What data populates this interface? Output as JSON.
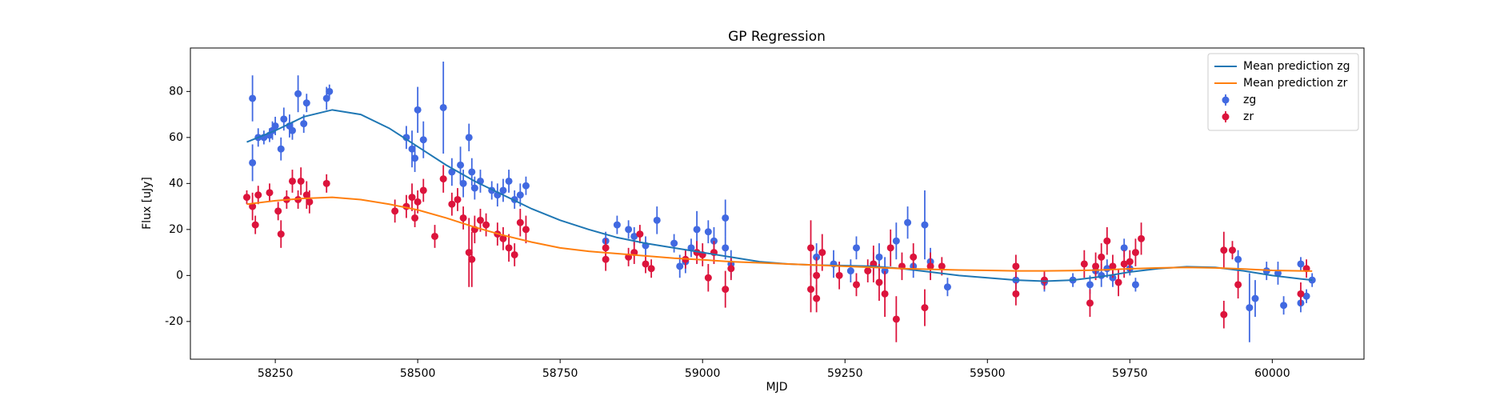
{
  "chart_data": {
    "type": "errorbar",
    "title": "GP Regression",
    "x_label": "MJD",
    "y_label": "Flux [uJy]",
    "xlim": [
      58101,
      60161
    ],
    "ylim": [
      -36.4,
      98.9
    ],
    "xticks": [
      58250,
      58500,
      58750,
      59000,
      59250,
      59500,
      59750,
      60000
    ],
    "yticks": [
      -20,
      0,
      20,
      40,
      60,
      80
    ],
    "legend": "upper right",
    "series": [
      {
        "name": "Mean prediction zg",
        "type": "line",
        "color": "#1f77b4",
        "x": [
          58200,
          58250,
          58300,
          58350,
          58400,
          58450,
          58500,
          58550,
          58600,
          58650,
          58700,
          58750,
          58800,
          58850,
          58900,
          58950,
          59000,
          59050,
          59100,
          59150,
          59200,
          59250,
          59300,
          59350,
          59400,
          59450,
          59500,
          59550,
          59600,
          59650,
          59700,
          59750,
          59800,
          59850,
          59900,
          59950,
          60000,
          60050,
          60070
        ],
        "values": [
          58,
          63,
          69,
          72,
          70,
          64,
          56,
          48,
          41,
          35,
          29,
          24,
          20,
          16.5,
          14,
          12,
          10,
          8,
          6,
          5,
          4.5,
          4.3,
          4,
          3,
          1.5,
          0,
          -1,
          -2,
          -2.5,
          -2,
          -0.5,
          1.5,
          3,
          3.8,
          3.5,
          2,
          0,
          -1.5,
          -2
        ]
      },
      {
        "name": "Mean prediction zr",
        "type": "line",
        "color": "#ff7f0e",
        "x": [
          58200,
          58250,
          58300,
          58350,
          58400,
          58450,
          58500,
          58550,
          58600,
          58650,
          58700,
          58750,
          58800,
          58850,
          58900,
          58950,
          59000,
          59050,
          59100,
          59150,
          59200,
          59250,
          59300,
          59350,
          59400,
          59450,
          59500,
          59550,
          59600,
          59650,
          59700,
          59750,
          59800,
          59850,
          59900,
          59950,
          60000,
          60050,
          60070
        ],
        "values": [
          31,
          32.5,
          33.5,
          34,
          33,
          31,
          28.5,
          25,
          21,
          17.5,
          14.5,
          12,
          10.5,
          9.5,
          8.5,
          7.5,
          6.8,
          6,
          5.5,
          5,
          4.5,
          4,
          3.5,
          3,
          2.7,
          2.4,
          2.2,
          2,
          2,
          2.1,
          2.4,
          2.9,
          3.3,
          3.5,
          3.3,
          2.8,
          2.2,
          2,
          1.9
        ]
      },
      {
        "name": "zg",
        "type": "errorbar",
        "color": "#4169e1",
        "x": [
          58210,
          58210,
          58220,
          58230,
          58240,
          58245,
          58250,
          58260,
          58265,
          58275,
          58280,
          58290,
          58300,
          58305,
          58340,
          58345,
          58480,
          58490,
          58495,
          58500,
          58510,
          58545,
          58560,
          58575,
          58580,
          58590,
          58595,
          58600,
          58610,
          58630,
          58640,
          58650,
          58660,
          58670,
          58680,
          58690,
          58830,
          58850,
          58870,
          58880,
          58900,
          58920,
          58950,
          58960,
          58970,
          58980,
          58990,
          59010,
          59020,
          59040,
          59040,
          59050,
          59200,
          59230,
          59260,
          59270,
          59300,
          59310,
          59320,
          59340,
          59360,
          59370,
          59390,
          59400,
          59430,
          59550,
          59600,
          59650,
          59680,
          59690,
          59700,
          59710,
          59720,
          59740,
          59750,
          59760,
          59940,
          59960,
          59970,
          59990,
          60010,
          60020,
          60050,
          60050,
          60060,
          60070
        ],
        "values": [
          77,
          49,
          60,
          60,
          61,
          63,
          65,
          55,
          68,
          65,
          63,
          79,
          66,
          75,
          77,
          80,
          60,
          55,
          51,
          72,
          59,
          73,
          45,
          48,
          40,
          60,
          45,
          38,
          41,
          37,
          35,
          37,
          41,
          33,
          35,
          39,
          15,
          22,
          20,
          17,
          13,
          24,
          14,
          4,
          6,
          12,
          20,
          19,
          15,
          12,
          25,
          5,
          8,
          5,
          2,
          12,
          5,
          8,
          2,
          15,
          23,
          4,
          22,
          6,
          -5,
          -2,
          -3,
          -2,
          -4,
          2,
          0,
          3,
          -1,
          12,
          3,
          -4,
          7,
          -14,
          -10,
          2,
          1,
          -13,
          -12,
          5,
          -9,
          -2
        ],
        "errors": [
          10,
          8,
          4,
          3,
          3,
          4,
          4,
          5,
          5,
          5,
          4,
          8,
          4,
          4,
          5,
          3,
          5,
          8,
          6,
          10,
          8,
          20,
          6,
          8,
          6,
          6,
          6,
          5,
          5,
          4,
          5,
          5,
          5,
          4,
          5,
          4,
          4,
          4,
          4,
          4,
          4,
          6,
          4,
          5,
          5,
          4,
          8,
          5,
          6,
          5,
          8,
          6,
          6,
          6,
          5,
          5,
          5,
          6,
          6,
          8,
          7,
          5,
          15,
          6,
          4,
          4,
          4,
          3,
          4,
          3,
          5,
          4,
          4,
          4,
          3,
          3,
          4,
          15,
          8,
          4,
          5,
          4,
          4,
          3,
          3,
          3
        ]
      },
      {
        "name": "zr",
        "type": "errorbar",
        "color": "#dc143c",
        "x": [
          58200,
          58210,
          58215,
          58220,
          58240,
          58255,
          58260,
          58270,
          58280,
          58290,
          58295,
          58305,
          58310,
          58340,
          58460,
          58480,
          58490,
          58495,
          58500,
          58510,
          58530,
          58545,
          58560,
          58570,
          58580,
          58590,
          58595,
          58600,
          58610,
          58620,
          58640,
          58650,
          58660,
          58670,
          58680,
          58690,
          58830,
          58830,
          58870,
          58880,
          58890,
          58900,
          58910,
          58970,
          58990,
          59000,
          59010,
          59020,
          59040,
          59050,
          59190,
          59190,
          59200,
          59200,
          59210,
          59240,
          59270,
          59290,
          59300,
          59310,
          59320,
          59330,
          59340,
          59350,
          59370,
          59390,
          59400,
          59420,
          59550,
          59550,
          59600,
          59670,
          59680,
          59690,
          59700,
          59710,
          59720,
          59730,
          59740,
          59750,
          59760,
          59770,
          59915,
          59915,
          59930,
          59940,
          60050,
          60060
        ],
        "values": [
          34,
          30,
          22,
          35,
          36,
          28,
          18,
          33,
          41,
          33,
          41,
          35,
          32,
          40,
          28,
          30,
          34,
          25,
          32,
          37,
          17,
          42,
          31,
          33,
          25,
          10,
          7,
          20,
          24,
          22,
          18,
          16,
          12,
          9,
          23,
          20,
          7,
          12,
          8,
          10,
          18,
          5,
          3,
          7,
          10,
          9,
          -1,
          10,
          -6,
          3,
          12,
          -6,
          0,
          -10,
          10,
          0,
          -4,
          2,
          5,
          -3,
          -8,
          12,
          -19,
          4,
          8,
          -14,
          4,
          4,
          4,
          -8,
          -2,
          5,
          -12,
          4,
          8,
          15,
          4,
          -3,
          5,
          6,
          10,
          16,
          11,
          -17,
          11,
          -4,
          -8,
          3
        ],
        "errors": [
          3,
          6,
          4,
          4,
          4,
          4,
          6,
          4,
          5,
          4,
          6,
          6,
          5,
          4,
          5,
          5,
          6,
          4,
          5,
          5,
          5,
          6,
          5,
          5,
          5,
          15,
          12,
          6,
          5,
          5,
          5,
          5,
          6,
          5,
          6,
          6,
          5,
          4,
          4,
          5,
          4,
          4,
          4,
          4,
          5,
          5,
          6,
          5,
          8,
          5,
          12,
          10,
          8,
          6,
          8,
          6,
          5,
          5,
          8,
          8,
          10,
          8,
          10,
          6,
          6,
          8,
          6,
          4,
          5,
          5,
          4,
          6,
          6,
          6,
          6,
          6,
          5,
          6,
          6,
          5,
          6,
          7,
          8,
          6,
          4,
          6,
          5,
          4
        ]
      }
    ]
  }
}
